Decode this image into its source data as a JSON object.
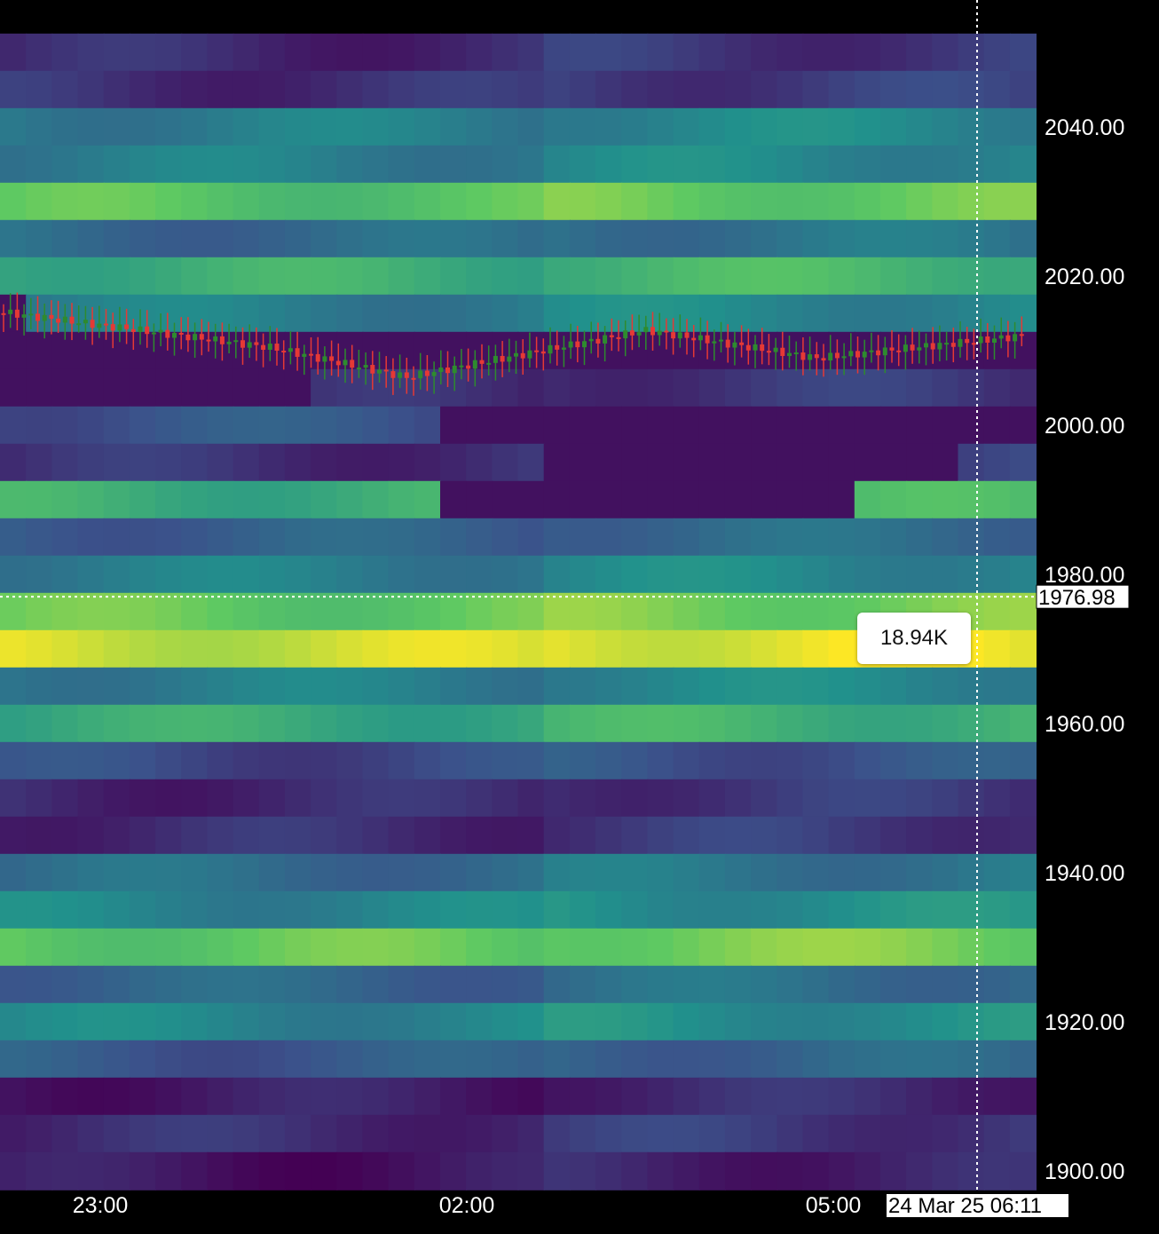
{
  "chart_data": {
    "type": "heatmap",
    "title": "",
    "xlabel": "",
    "ylabel": "",
    "x_ticks": [
      "23:00",
      "02:00",
      "05:00"
    ],
    "y_ticks": [
      "2040.00",
      "2020.00",
      "2000.00",
      "1980.00",
      "1960.00",
      "1940.00",
      "1920.00",
      "1900.00"
    ],
    "y_tick_values": [
      2040,
      2020,
      2000,
      1980,
      1960,
      1940,
      1920,
      1900
    ],
    "ylim": [
      1897,
      2057
    ],
    "price_bands": [
      2050,
      2045,
      2040,
      2035,
      2030,
      2025,
      2020,
      2015,
      2010,
      2005,
      2000,
      1995,
      1990,
      1985,
      1980,
      1975,
      1970,
      1965,
      1960,
      1955,
      1950,
      1945,
      1940,
      1935,
      1930,
      1925,
      1920,
      1915,
      1910,
      1905,
      1900
    ],
    "crosshair_price": "1976.98",
    "crosshair_time": "24 Mar 25 06:11",
    "tooltip_value": "18.94K",
    "colorscale": [
      "#440154",
      "#3b528b",
      "#21918c",
      "#5ec962",
      "#fde725"
    ],
    "candle_colors": {
      "up": "#2e8b2e",
      "down": "#e53935"
    }
  }
}
